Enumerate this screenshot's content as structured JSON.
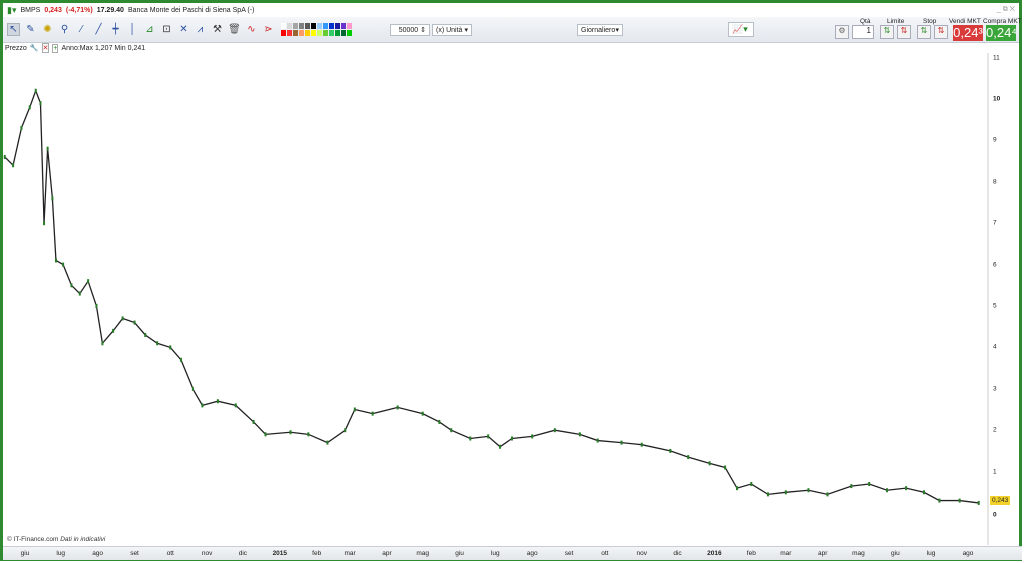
{
  "title": {
    "symbol": "BMPS",
    "price": "0,243",
    "change": "(-4,71%)",
    "time": "17.29.40",
    "name": "Banca Monte dei Paschi di Siena SpA (-)"
  },
  "toolbar": {
    "quantity": "50000",
    "unit": "(x) Unità",
    "period": "Giornaliero",
    "palette": [
      "#ffffff",
      "#d9d9d9",
      "#a6a6a6",
      "#808080",
      "#595959",
      "#000000",
      "#99ccff",
      "#3399ff",
      "#0033cc",
      "#1a1aa0",
      "#6633cc",
      "#ff99cc",
      "#ff0000",
      "#ff3333",
      "#996633",
      "#ff9966",
      "#ffcc00",
      "#ffff00",
      "#ccff66",
      "#66cc33",
      "#33cc66",
      "#009933",
      "#006633",
      "#00cc00"
    ]
  },
  "trade": {
    "qty_label": "Qtà",
    "qty": "1",
    "limit_label": "Limite",
    "stop_label": "Stop",
    "sell_label": "Vendi MKT",
    "buy_label": "Compra MKT",
    "sell_price": "0,24³",
    "buy_price": "0,24⁴",
    "sell_color": "#d93a3a",
    "buy_color": "#3aa63a"
  },
  "chart_head": {
    "label": "Prezzo",
    "info": "Anno:Max 1,207 Min 0,241"
  },
  "footer": {
    "copyright": "© IT-Finance.com",
    "note": "Dati in indicativi"
  },
  "chart_data": {
    "type": "candlestick",
    "y_ticks": [
      "11",
      "10",
      "9",
      "8",
      "7",
      "6",
      "5",
      "4",
      "3",
      "2",
      "1",
      "0"
    ],
    "last_price": "0,243",
    "x_ticks": [
      [
        "giu",
        "2014-06-01"
      ],
      [
        "lug",
        "2014-07-01"
      ],
      [
        "ago",
        "2014-08-01"
      ],
      [
        "set",
        "2014-09-01"
      ],
      [
        "ott",
        "2014-10-01"
      ],
      [
        "nov",
        "2014-11-01"
      ],
      [
        "dic",
        "2014-12-01"
      ],
      [
        "2015",
        "2015-01-01"
      ],
      [
        "feb",
        "2015-02-01"
      ],
      [
        "mar",
        "2015-03-01"
      ],
      [
        "apr",
        "2015-04-01"
      ],
      [
        "mag",
        "2015-05-01"
      ],
      [
        "giu",
        "2015-06-01"
      ],
      [
        "lug",
        "2015-07-01"
      ],
      [
        "ago",
        "2015-08-01"
      ],
      [
        "set",
        "2015-09-01"
      ],
      [
        "ott",
        "2015-10-01"
      ],
      [
        "nov",
        "2015-11-01"
      ],
      [
        "dic",
        "2015-12-01"
      ],
      [
        "2016",
        "2016-01-01"
      ],
      [
        "feb",
        "2016-02-01"
      ],
      [
        "mar",
        "2016-03-01"
      ],
      [
        "apr",
        "2016-04-01"
      ],
      [
        "mag",
        "2016-05-01"
      ],
      [
        "giu",
        "2016-06-01"
      ],
      [
        "lug",
        "2016-07-01"
      ],
      [
        "ago",
        "2016-08-01"
      ]
    ],
    "ylim": [
      0,
      11
    ],
    "series": [
      [
        "2014-05-15",
        8.6
      ],
      [
        "2014-05-22",
        8.4
      ],
      [
        "2014-05-29",
        9.3
      ],
      [
        "2014-06-05",
        9.8
      ],
      [
        "2014-06-10",
        10.2
      ],
      [
        "2014-06-14",
        9.9
      ],
      [
        "2014-06-17",
        7.0
      ],
      [
        "2014-06-20",
        8.8
      ],
      [
        "2014-06-24",
        7.6
      ],
      [
        "2014-06-27",
        6.1
      ],
      [
        "2014-07-03",
        6.0
      ],
      [
        "2014-07-10",
        5.5
      ],
      [
        "2014-07-17",
        5.3
      ],
      [
        "2014-07-24",
        5.6
      ],
      [
        "2014-07-31",
        5.0
      ],
      [
        "2014-08-05",
        4.1
      ],
      [
        "2014-08-14",
        4.4
      ],
      [
        "2014-08-22",
        4.7
      ],
      [
        "2014-09-01",
        4.6
      ],
      [
        "2014-09-10",
        4.3
      ],
      [
        "2014-09-20",
        4.1
      ],
      [
        "2014-10-01",
        4.0
      ],
      [
        "2014-10-10",
        3.7
      ],
      [
        "2014-10-20",
        3.0
      ],
      [
        "2014-10-28",
        2.6
      ],
      [
        "2014-11-10",
        2.7
      ],
      [
        "2014-11-25",
        2.6
      ],
      [
        "2014-12-10",
        2.2
      ],
      [
        "2014-12-20",
        1.9
      ],
      [
        "2015-01-10",
        1.95
      ],
      [
        "2015-01-25",
        1.9
      ],
      [
        "2015-02-10",
        1.7
      ],
      [
        "2015-02-25",
        2.0
      ],
      [
        "2015-03-05",
        2.5
      ],
      [
        "2015-03-20",
        2.4
      ],
      [
        "2015-04-10",
        2.55
      ],
      [
        "2015-05-01",
        2.4
      ],
      [
        "2015-05-15",
        2.2
      ],
      [
        "2015-05-25",
        2.0
      ],
      [
        "2015-06-10",
        1.8
      ],
      [
        "2015-06-25",
        1.85
      ],
      [
        "2015-07-05",
        1.6
      ],
      [
        "2015-07-15",
        1.8
      ],
      [
        "2015-08-01",
        1.85
      ],
      [
        "2015-08-20",
        2.0
      ],
      [
        "2015-09-10",
        1.9
      ],
      [
        "2015-09-25",
        1.75
      ],
      [
        "2015-10-15",
        1.7
      ],
      [
        "2015-11-01",
        1.65
      ],
      [
        "2015-11-25",
        1.5
      ],
      [
        "2015-12-10",
        1.35
      ],
      [
        "2015-12-28",
        1.2
      ],
      [
        "2016-01-10",
        1.1
      ],
      [
        "2016-01-20",
        0.6
      ],
      [
        "2016-02-01",
        0.7
      ],
      [
        "2016-02-15",
        0.45
      ],
      [
        "2016-03-01",
        0.5
      ],
      [
        "2016-03-20",
        0.55
      ],
      [
        "2016-04-05",
        0.45
      ],
      [
        "2016-04-25",
        0.65
      ],
      [
        "2016-05-10",
        0.7
      ],
      [
        "2016-05-25",
        0.55
      ],
      [
        "2016-06-10",
        0.6
      ],
      [
        "2016-06-25",
        0.5
      ],
      [
        "2016-07-08",
        0.3
      ],
      [
        "2016-07-25",
        0.3
      ],
      [
        "2016-08-10",
        0.243
      ]
    ]
  }
}
